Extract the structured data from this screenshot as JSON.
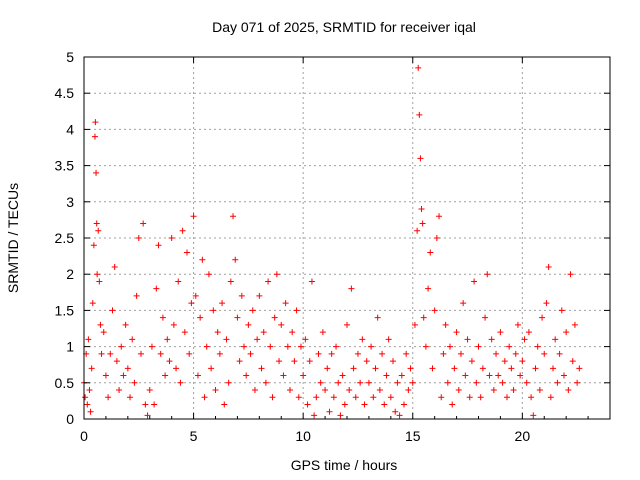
{
  "chart_data": {
    "type": "scatter",
    "title": "Day 071 of 2025, SRMTID for receiver iqal",
    "xlabel": "GPS time / hours",
    "ylabel": "SRMTID / TECUs",
    "xlim": [
      0,
      24
    ],
    "ylim": [
      0,
      5
    ],
    "x_ticks": [
      "0",
      "5",
      "10",
      "15",
      "20"
    ],
    "y_ticks": [
      "0",
      "0.5",
      "1",
      "1.5",
      "2",
      "2.5",
      "3",
      "3.5",
      "4",
      "4.5",
      "5"
    ],
    "grid": true,
    "marker": "+",
    "color": "#ff0000",
    "series": [
      {
        "name": "SRMTID",
        "points": [
          [
            0.0,
            0.5
          ],
          [
            0.05,
            0.3
          ],
          [
            0.1,
            0.9
          ],
          [
            0.15,
            0.2
          ],
          [
            0.2,
            1.1
          ],
          [
            0.25,
            0.4
          ],
          [
            0.3,
            0.1
          ],
          [
            0.35,
            0.7
          ],
          [
            0.4,
            1.6
          ],
          [
            0.45,
            2.4
          ],
          [
            0.5,
            3.9
          ],
          [
            0.52,
            4.1
          ],
          [
            0.55,
            3.4
          ],
          [
            0.58,
            2.7
          ],
          [
            0.6,
            2.0
          ],
          [
            0.65,
            2.6
          ],
          [
            0.7,
            1.9
          ],
          [
            0.75,
            1.3
          ],
          [
            0.8,
            0.9
          ],
          [
            0.9,
            1.2
          ],
          [
            1.0,
            0.6
          ],
          [
            1.1,
            0.3
          ],
          [
            1.2,
            0.9
          ],
          [
            1.3,
            1.5
          ],
          [
            1.4,
            2.1
          ],
          [
            1.5,
            0.8
          ],
          [
            1.6,
            0.4
          ],
          [
            1.7,
            1.0
          ],
          [
            1.8,
            0.6
          ],
          [
            1.9,
            1.3
          ],
          [
            2.0,
            0.7
          ],
          [
            2.1,
            0.3
          ],
          [
            2.2,
            1.1
          ],
          [
            2.3,
            0.5
          ],
          [
            2.4,
            1.7
          ],
          [
            2.5,
            2.5
          ],
          [
            2.6,
            0.9
          ],
          [
            2.7,
            2.7
          ],
          [
            2.8,
            0.2
          ],
          [
            2.9,
            0.05
          ],
          [
            3.0,
            0.4
          ],
          [
            3.1,
            1.0
          ],
          [
            3.2,
            0.2
          ],
          [
            3.3,
            1.8
          ],
          [
            3.4,
            2.4
          ],
          [
            3.5,
            0.9
          ],
          [
            3.6,
            1.4
          ],
          [
            3.7,
            0.6
          ],
          [
            3.8,
            1.1
          ],
          [
            3.9,
            0.8
          ],
          [
            4.0,
            2.5
          ],
          [
            4.1,
            1.3
          ],
          [
            4.2,
            0.7
          ],
          [
            4.3,
            1.9
          ],
          [
            4.4,
            0.5
          ],
          [
            4.5,
            2.6
          ],
          [
            4.6,
            1.2
          ],
          [
            4.7,
            2.3
          ],
          [
            4.8,
            0.9
          ],
          [
            4.9,
            1.6
          ],
          [
            5.0,
            2.8
          ],
          [
            5.1,
            1.7
          ],
          [
            5.2,
            0.6
          ],
          [
            5.3,
            1.4
          ],
          [
            5.4,
            2.2
          ],
          [
            5.5,
            0.3
          ],
          [
            5.6,
            1.0
          ],
          [
            5.7,
            2.0
          ],
          [
            5.8,
            0.7
          ],
          [
            5.9,
            1.5
          ],
          [
            6.0,
            0.4
          ],
          [
            6.1,
            1.2
          ],
          [
            6.2,
            0.9
          ],
          [
            6.3,
            1.6
          ],
          [
            6.4,
            0.2
          ],
          [
            6.5,
            1.1
          ],
          [
            6.6,
            0.5
          ],
          [
            6.7,
            1.9
          ],
          [
            6.8,
            2.8
          ],
          [
            6.9,
            2.2
          ],
          [
            7.0,
            1.4
          ],
          [
            7.1,
            0.8
          ],
          [
            7.2,
            1.7
          ],
          [
            7.3,
            1.0
          ],
          [
            7.4,
            0.6
          ],
          [
            7.5,
            1.3
          ],
          [
            7.6,
            0.9
          ],
          [
            7.7,
            1.5
          ],
          [
            7.8,
            0.4
          ],
          [
            7.9,
            1.1
          ],
          [
            8.0,
            1.7
          ],
          [
            8.1,
            0.7
          ],
          [
            8.2,
            1.2
          ],
          [
            8.3,
            0.5
          ],
          [
            8.4,
            1.9
          ],
          [
            8.5,
            1.0
          ],
          [
            8.6,
            0.3
          ],
          [
            8.7,
            1.4
          ],
          [
            8.8,
            2.0
          ],
          [
            8.9,
            0.8
          ],
          [
            9.0,
            1.3
          ],
          [
            9.1,
            0.6
          ],
          [
            9.2,
            1.6
          ],
          [
            9.3,
            1.0
          ],
          [
            9.4,
            0.4
          ],
          [
            9.5,
            1.2
          ],
          [
            9.6,
            0.8
          ],
          [
            9.7,
            1.5
          ],
          [
            9.8,
            0.3
          ],
          [
            9.9,
            1.0
          ],
          [
            10.0,
            0.6
          ],
          [
            10.1,
            1.1
          ],
          [
            10.2,
            0.2
          ],
          [
            10.3,
            0.8
          ],
          [
            10.4,
            1.9
          ],
          [
            10.5,
            0.05
          ],
          [
            10.6,
            0.3
          ],
          [
            10.7,
            0.9
          ],
          [
            10.8,
            0.5
          ],
          [
            10.9,
            1.2
          ],
          [
            11.0,
            0.4
          ],
          [
            11.1,
            0.7
          ],
          [
            11.2,
            0.1
          ],
          [
            11.3,
            0.9
          ],
          [
            11.4,
            0.3
          ],
          [
            11.5,
            1.0
          ],
          [
            11.6,
            0.5
          ],
          [
            11.7,
            0.05
          ],
          [
            11.8,
            0.6
          ],
          [
            11.9,
            0.2
          ],
          [
            12.0,
            1.3
          ],
          [
            12.1,
            0.4
          ],
          [
            12.2,
            1.8
          ],
          [
            12.3,
            0.7
          ],
          [
            12.4,
            0.3
          ],
          [
            12.5,
            0.9
          ],
          [
            12.6,
            0.5
          ],
          [
            12.7,
            1.1
          ],
          [
            12.8,
            0.2
          ],
          [
            12.9,
            0.8
          ],
          [
            13.0,
            0.5
          ],
          [
            13.1,
            1.0
          ],
          [
            13.2,
            0.3
          ],
          [
            13.3,
            0.7
          ],
          [
            13.4,
            1.4
          ],
          [
            13.5,
            0.4
          ],
          [
            13.6,
            0.9
          ],
          [
            13.7,
            0.2
          ],
          [
            13.8,
            0.6
          ],
          [
            13.9,
            1.1
          ],
          [
            14.0,
            0.3
          ],
          [
            14.1,
            0.8
          ],
          [
            14.2,
            0.1
          ],
          [
            14.3,
            0.5
          ],
          [
            14.4,
            0.05
          ],
          [
            14.5,
            0.6
          ],
          [
            14.6,
            0.2
          ],
          [
            14.7,
            0.9
          ],
          [
            14.8,
            0.4
          ],
          [
            14.9,
            0.7
          ],
          [
            15.0,
            0.5
          ],
          [
            15.1,
            1.3
          ],
          [
            15.2,
            2.6
          ],
          [
            15.25,
            4.85
          ],
          [
            15.3,
            4.2
          ],
          [
            15.35,
            3.6
          ],
          [
            15.4,
            2.9
          ],
          [
            15.45,
            2.7
          ],
          [
            15.5,
            1.4
          ],
          [
            15.6,
            1.0
          ],
          [
            15.7,
            1.8
          ],
          [
            15.8,
            2.3
          ],
          [
            15.9,
            0.7
          ],
          [
            16.0,
            1.5
          ],
          [
            16.1,
            2.5
          ],
          [
            16.2,
            2.8
          ],
          [
            16.3,
            0.3
          ],
          [
            16.4,
            0.9
          ],
          [
            16.5,
            1.3
          ],
          [
            16.6,
            0.5
          ],
          [
            16.7,
            1.0
          ],
          [
            16.8,
            0.2
          ],
          [
            16.9,
            0.7
          ],
          [
            17.0,
            1.2
          ],
          [
            17.1,
            0.4
          ],
          [
            17.2,
            0.9
          ],
          [
            17.3,
            1.6
          ],
          [
            17.4,
            0.6
          ],
          [
            17.5,
            1.1
          ],
          [
            17.6,
            0.3
          ],
          [
            17.7,
            0.8
          ],
          [
            17.8,
            1.9
          ],
          [
            17.9,
            0.5
          ],
          [
            18.0,
            1.0
          ],
          [
            18.1,
            0.3
          ],
          [
            18.2,
            0.7
          ],
          [
            18.3,
            1.4
          ],
          [
            18.4,
            2.0
          ],
          [
            18.5,
            0.6
          ],
          [
            18.6,
            1.1
          ],
          [
            18.7,
            0.4
          ],
          [
            18.8,
            0.9
          ],
          [
            18.9,
            0.6
          ],
          [
            19.0,
            1.2
          ],
          [
            19.1,
            0.5
          ],
          [
            19.2,
            0.8
          ],
          [
            19.3,
            0.3
          ],
          [
            19.4,
            1.0
          ],
          [
            19.5,
            0.7
          ],
          [
            19.6,
            0.4
          ],
          [
            19.7,
            0.9
          ],
          [
            19.8,
            1.3
          ],
          [
            19.9,
            0.6
          ],
          [
            20.0,
            0.8
          ],
          [
            20.1,
            1.1
          ],
          [
            20.2,
            0.5
          ],
          [
            20.3,
            1.2
          ],
          [
            20.4,
            0.3
          ],
          [
            20.5,
            0.05
          ],
          [
            20.6,
            0.7
          ],
          [
            20.7,
            1.0
          ],
          [
            20.8,
            0.4
          ],
          [
            20.9,
            1.4
          ],
          [
            21.0,
            0.9
          ],
          [
            21.1,
            1.6
          ],
          [
            21.2,
            2.1
          ],
          [
            21.3,
            0.3
          ],
          [
            21.4,
            0.7
          ],
          [
            21.5,
            1.1
          ],
          [
            21.6,
            0.5
          ],
          [
            21.7,
            0.9
          ],
          [
            21.8,
            1.5
          ],
          [
            21.9,
            0.6
          ],
          [
            22.0,
            1.2
          ],
          [
            22.1,
            0.4
          ],
          [
            22.2,
            2.0
          ],
          [
            22.3,
            0.8
          ],
          [
            22.4,
            1.3
          ],
          [
            22.5,
            0.5
          ],
          [
            22.6,
            0.7
          ]
        ]
      }
    ]
  }
}
